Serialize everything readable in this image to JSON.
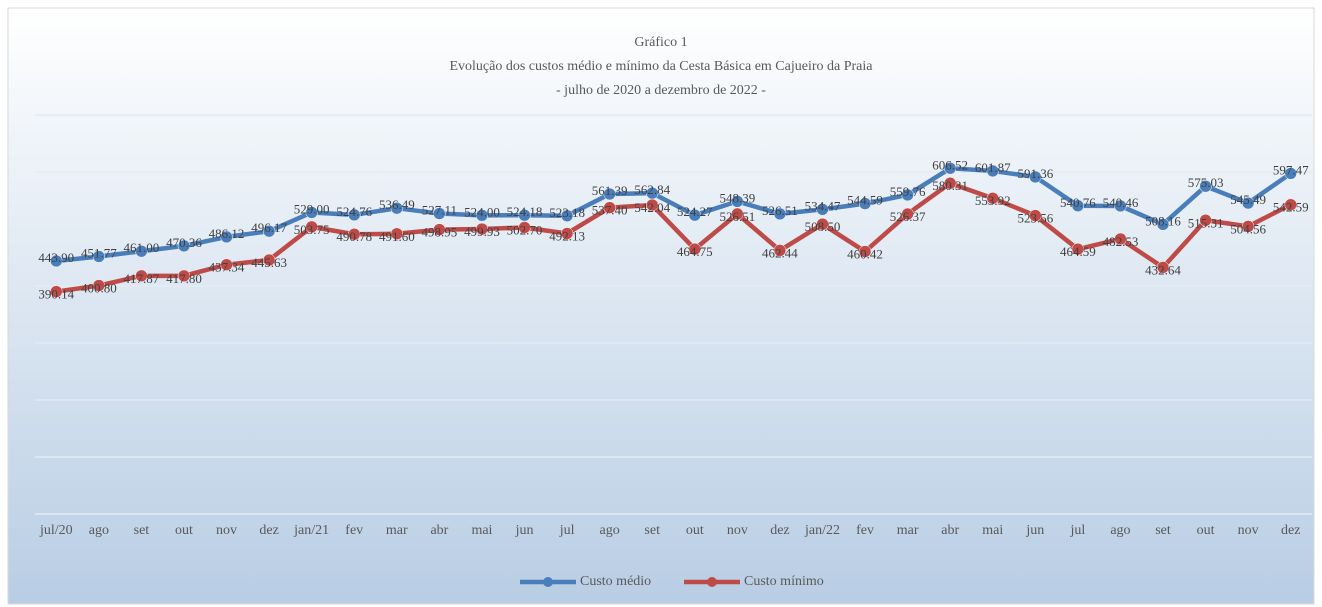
{
  "chart_data": {
    "type": "line",
    "title": "Gráfico 1",
    "subtitle": [
      "Evolução dos custos médio e mínimo da Cesta Básica em Cajueiro da Praia",
      "- julho de 2020 a dezembro de 2022 -"
    ],
    "categories": [
      "jul/20",
      "ago",
      "set",
      "out",
      "nov",
      "dez",
      "jan/21",
      "fev",
      "mar",
      "abr",
      "mai",
      "jun",
      "jul",
      "ago",
      "set",
      "out",
      "nov",
      "dez",
      "jan/22",
      "fev",
      "mar",
      "abr",
      "mai",
      "jun",
      "jul",
      "ago",
      "set",
      "out",
      "nov",
      "dez"
    ],
    "series": [
      {
        "name": "Custo médio",
        "color": "#4a7ebb",
        "values": [
          443.9,
          451.77,
          461.0,
          470.36,
          486.12,
          496.17,
          529.0,
          524.76,
          536.49,
          527.11,
          524.0,
          524.18,
          523.18,
          561.39,
          562.84,
          524.27,
          548.39,
          526.51,
          534.47,
          544.59,
          559.76,
          606.52,
          601.87,
          591.36,
          540.76,
          540.46,
          508.16,
          575.03,
          545.49,
          597.47
        ],
        "value_labels": [
          "443.90",
          "451.77",
          "461.00",
          "470.36",
          "486.12",
          "496.17",
          "529.00",
          "524.76",
          "536.49",
          "527.11",
          "524.00",
          "524.18",
          "523.18",
          "561.39",
          "562.84",
          "524.27",
          "548.39",
          "526.51",
          "534.47",
          "544.59",
          "559.76",
          "606.52",
          "601.87",
          "591.36",
          "540.76",
          "540.46",
          "508.16",
          "575.03",
          "545.49",
          "597.47"
        ]
      },
      {
        "name": "Custo mínimo",
        "color": "#be4b48",
        "values": [
          390.14,
          400.8,
          417.87,
          417.8,
          437.34,
          445.63,
          503.75,
          490.78,
          491.6,
          498.95,
          499.93,
          502.7,
          492.13,
          537.4,
          542.04,
          464.75,
          526.51,
          462.44,
          508.5,
          460.42,
          526.37,
          580.31,
          553.92,
          523.56,
          464.59,
          482.53,
          432.64,
          515.31,
          504.56,
          542.59
        ],
        "value_labels": [
          "390.14",
          "400.80",
          "417.87",
          "417.80",
          "437.34",
          "445.63",
          "503.75",
          "490.78",
          "491.60",
          "498.95",
          "499.93",
          "502.70",
          "492.13",
          "537.40",
          "542.04",
          "464.75",
          "526.51",
          "462.44",
          "508.50",
          "460.42",
          "526.37",
          "580.31",
          "553.92",
          "523.56",
          "464.59",
          "482.53",
          "432.64",
          "515.31",
          "504.56",
          "542.59"
        ]
      }
    ],
    "ylim": [
      0,
      700
    ],
    "yticks": [
      0,
      100,
      200,
      300,
      400,
      500,
      600,
      700
    ],
    "grid": true,
    "legend": "bottom"
  }
}
